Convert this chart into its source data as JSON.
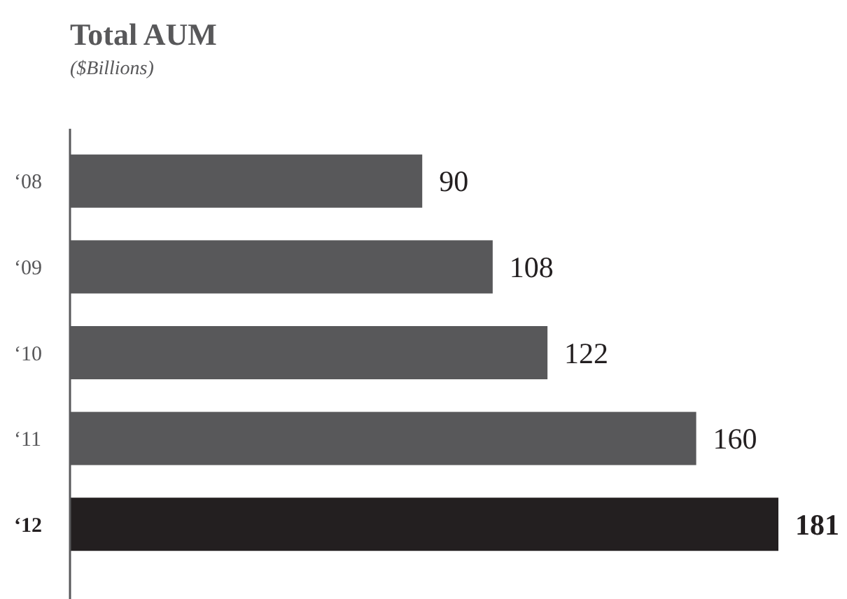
{
  "chart_data": {
    "type": "bar",
    "orientation": "horizontal",
    "title": "Total AUM",
    "subtitle": "($Billions)",
    "categories": [
      "‘08",
      "‘09",
      "‘10",
      "‘11",
      "‘12"
    ],
    "values": [
      90,
      108,
      122,
      160,
      181
    ],
    "colors": [
      "#58585a",
      "#58585a",
      "#58585a",
      "#58585a",
      "#231f20"
    ],
    "data_labels": true
  }
}
